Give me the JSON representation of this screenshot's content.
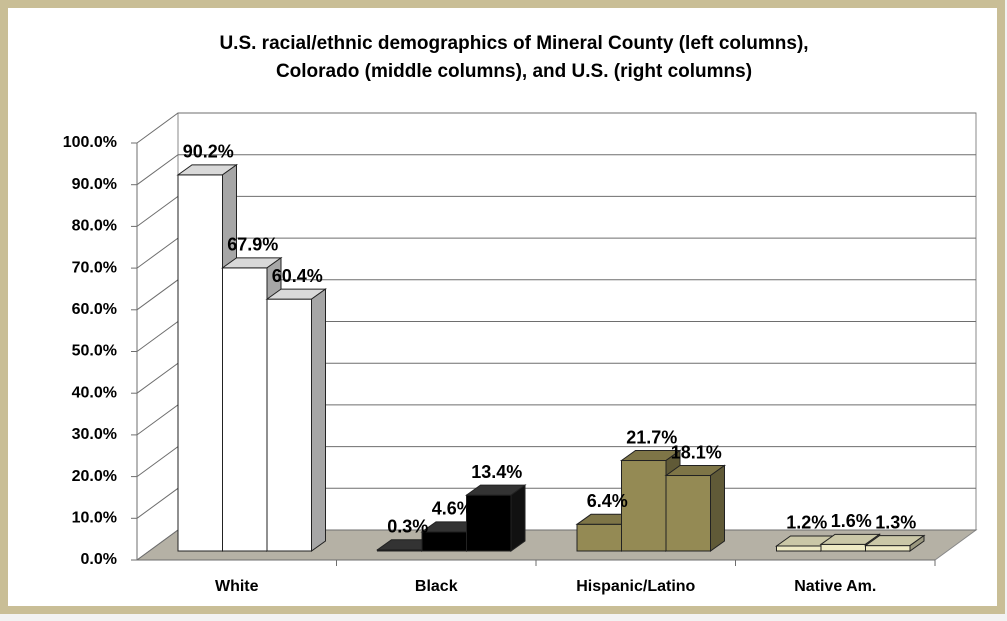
{
  "chart_data": {
    "type": "bar3d",
    "title": [
      "U.S. racial/ethnic demographics of Mineral County (left columns),",
      "Colorado (middle columns), and U.S. (right columns)"
    ],
    "categories": [
      "White",
      "Black",
      "Hispanic/Latino",
      "Native Am."
    ],
    "category_colors": [
      "#ffffff",
      "#000000",
      "#948a54",
      "#eeeac4"
    ],
    "series": [
      {
        "values": [
          90.2,
          0.3,
          6.4,
          1.2
        ],
        "value_labels": [
          "90.2%",
          "0.3%",
          "6.4%",
          "1.2%"
        ]
      },
      {
        "values": [
          67.9,
          4.6,
          21.7,
          1.6
        ],
        "value_labels": [
          "67.9%",
          "4.6%",
          "21.7%",
          "1.6%"
        ]
      },
      {
        "values": [
          60.4,
          13.4,
          18.1,
          1.3
        ],
        "value_labels": [
          "60.4%",
          "13.4%",
          "18.1%",
          "1.3%"
        ]
      }
    ],
    "ylim": [
      0,
      100
    ],
    "yticks": [
      {
        "value": 0,
        "label": "0.0%"
      },
      {
        "value": 10,
        "label": "10.0%"
      },
      {
        "value": 20,
        "label": "20.0%"
      },
      {
        "value": 30,
        "label": "30.0%"
      },
      {
        "value": 40,
        "label": "40.0%"
      },
      {
        "value": 50,
        "label": "50.0%"
      },
      {
        "value": 60,
        "label": "60.0%"
      },
      {
        "value": 70,
        "label": "70.0%"
      },
      {
        "value": 80,
        "label": "80.0%"
      },
      {
        "value": 90,
        "label": "90.0%"
      },
      {
        "value": 100,
        "label": "100.0%"
      }
    ],
    "grid": true
  }
}
